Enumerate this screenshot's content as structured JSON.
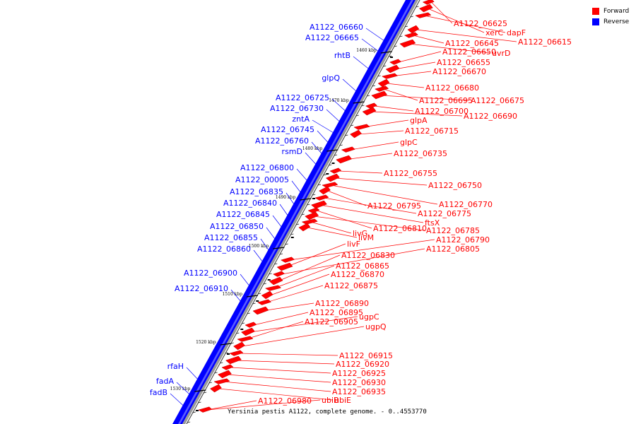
{
  "caption": "Yersinia pestis A1122, complete genome. - 0..4553770",
  "legend": [
    {
      "label": "Forward",
      "color": "#ff0000"
    },
    {
      "label": "Reverse",
      "color": "#0000ff"
    }
  ],
  "colors": {
    "forward": "#ff0000",
    "reverse": "#0000ff",
    "backbone": "#888888"
  },
  "ticks": [
    "1460 kbp",
    "1470 kbp",
    "1480 kbp",
    "1490 kbp",
    "1500 kbp",
    "1510 kbp",
    "1520 kbp",
    "1530 kbp"
  ],
  "reverse_labels": [
    "A1122_06660",
    "A1122_06665",
    "rhtB",
    "glpQ",
    "A1122_06725",
    "A1122_06730",
    "zntA",
    "A1122_06745",
    "A1122_06760",
    "rsmD",
    "A1122_06800",
    "A1122_00005",
    "A1122_06835",
    "A1122_06840",
    "A1122_06845",
    "A1122_06850",
    "A1122_06855",
    "A1122_06860",
    "A1122_06900",
    "A1122_06910",
    "rfaH",
    "fadA",
    "fadB"
  ],
  "forward_labels": [
    "A1122_06625",
    "xerC",
    "dapF",
    "A1122_06615",
    "A1122_06645",
    "uvrD",
    "A1122_06650",
    "A1122_06655",
    "A1122_06670",
    "A1122_06680",
    "A1122_06695",
    "A1122_06675",
    "A1122_06700",
    "A1122_06690",
    "glpA",
    "A1122_06715",
    "glpC",
    "A1122_06735",
    "A1122_06755",
    "A1122_06750",
    "A1122_06770",
    "A1122_06795",
    "A1122_06775",
    "ftsX",
    "A1122_06810",
    "A1122_06785",
    "livG",
    "livM",
    "A1122_06790",
    "livF",
    "A1122_06805",
    "A1122_06830",
    "A1122_06865",
    "A1122_06870",
    "A1122_06875",
    "A1122_06890",
    "A1122_06895",
    "ugpC",
    "A1122_06905",
    "ugpQ",
    "A1122_06915",
    "A1122_06920",
    "A1122_06925",
    "A1122_06930",
    "A1122_06935",
    "ubiE",
    "ubiB",
    "A1122_06980"
  ]
}
